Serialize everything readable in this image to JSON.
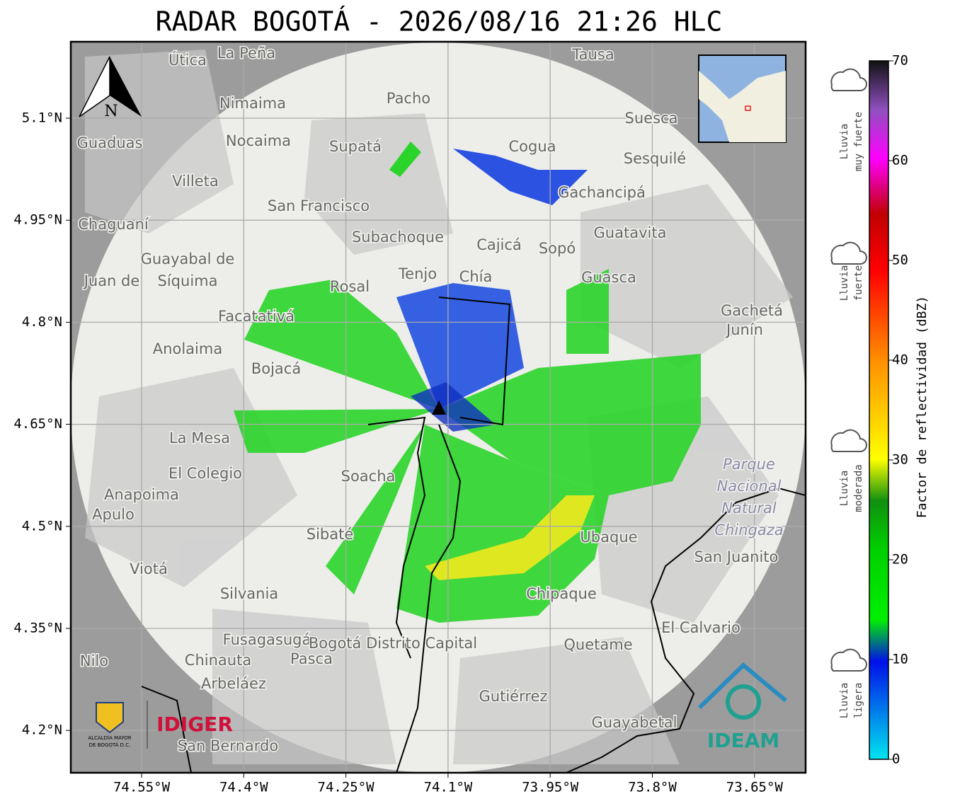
{
  "header": {
    "title": "RADAR BOGOTÁ - 2026/08/16 21:26 HLC"
  },
  "map": {
    "lat_ticks": [
      "5.1°N",
      "4.95°N",
      "4.8°N",
      "4.65°N",
      "4.5°N",
      "4.35°N",
      "4.2°N"
    ],
    "lon_ticks": [
      "74.55°W",
      "74.4°W",
      "74.25°W",
      "74.1°W",
      "73.95°W",
      "73.8°W",
      "73.65°W"
    ],
    "north": "N",
    "places": [
      "La Peña",
      "Útica",
      "Tausa",
      "Pacho",
      "Nimaima",
      "Suesca",
      "Guaduas",
      "Nocaima",
      "Supatá",
      "Cogua",
      "Sesquilé",
      "Villeta",
      "Gachancipá",
      "San Francisco",
      "Chaguaní",
      "Guatavita",
      "Subachoque",
      "Cajicá",
      "Sopó",
      "Guayabal de",
      "Síquima",
      "Tenjo",
      "Chía",
      "Guasca",
      "Rosal",
      "Juan de",
      "Facatativá",
      "Gachetá",
      "Junín",
      "Anolaima",
      "Bojacá",
      "La Mesa",
      "El Colegio",
      "Soacha",
      "Anapoima",
      "Apulo",
      "Sibaté",
      "Ubaque",
      "San Juanito",
      "Viotá",
      "Silvania",
      "Chipaque",
      "El Calvario",
      "Fusagasugá",
      "Bogotá Distrito Capital",
      "Quetame",
      "Chinauta",
      "Pasca",
      "Nilo",
      "Arbeláez",
      "Gutiérrez",
      "Guayabetal",
      "San Bernardo"
    ],
    "park": [
      "Parque",
      "Nacional",
      "Natural",
      "Chingaza"
    ]
  },
  "logos": {
    "alcaldia": [
      "ALCALDÍA MAYOR",
      "DE BOGOTÁ D.C."
    ],
    "idiger": "IDIGER",
    "ideam": "IDEAM"
  },
  "colorbar": {
    "label": "Factor de reflectividad (dBZ)",
    "ticks": [
      0,
      10,
      20,
      30,
      40,
      50,
      60,
      70
    ]
  },
  "legend": [
    [
      "Lluvia",
      "muy fuerte"
    ],
    [
      "Lluvia",
      "fuerte"
    ],
    [
      "Lluvia",
      "moderada"
    ],
    [
      "Lluvia",
      "ligera"
    ]
  ]
}
